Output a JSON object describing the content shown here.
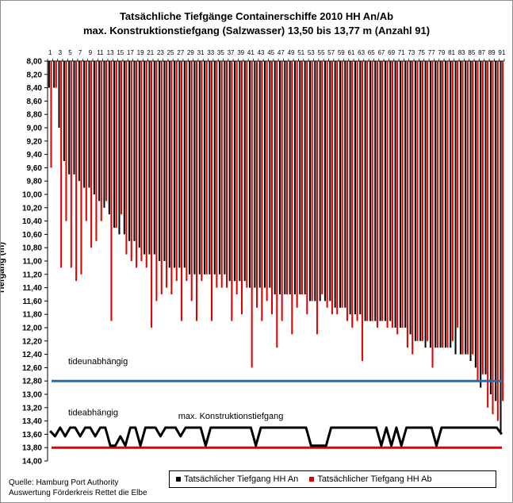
{
  "chart_data": {
    "type": "bar",
    "title": "Tatsächliche Tiefgänge Containerschiffe 2010 HH An/Ab",
    "subtitle": "max. Konstruktionstiefgang (Salzwasser) 13,50 bis 13,77 m (Anzahl 91)",
    "ylabel": "Tiefgang (m)",
    "xlabel": "",
    "ylim": [
      8.0,
      14.0
    ],
    "y_inverted": true,
    "y_tick_step": 0.2,
    "y_tick_labels": [
      "8,00",
      "8,20",
      "8,40",
      "8,60",
      "8,80",
      "9,00",
      "9,20",
      "9,40",
      "9,60",
      "9,80",
      "10,00",
      "10,20",
      "10,40",
      "10,60",
      "10,80",
      "11,00",
      "11,20",
      "11,40",
      "11,60",
      "11,80",
      "12,00",
      "12,20",
      "12,40",
      "12,60",
      "12,80",
      "13,00",
      "13,20",
      "13,40",
      "13,60",
      "13,80",
      "14,00"
    ],
    "categories": [
      "1",
      "2",
      "3",
      "4",
      "5",
      "6",
      "7",
      "8",
      "9",
      "10",
      "11",
      "12",
      "13",
      "14",
      "15",
      "16",
      "17",
      "18",
      "19",
      "20",
      "21",
      "22",
      "23",
      "24",
      "25",
      "26",
      "27",
      "28",
      "29",
      "30",
      "31",
      "32",
      "33",
      "34",
      "35",
      "36",
      "37",
      "38",
      "39",
      "40",
      "41",
      "42",
      "43",
      "44",
      "45",
      "46",
      "47",
      "48",
      "49",
      "50",
      "51",
      "52",
      "53",
      "54",
      "55",
      "56",
      "57",
      "58",
      "59",
      "60",
      "61",
      "62",
      "63",
      "64",
      "65",
      "66",
      "67",
      "68",
      "69",
      "70",
      "71",
      "72",
      "73",
      "74",
      "75",
      "76",
      "77",
      "78",
      "79",
      "80",
      "81",
      "82",
      "83",
      "84",
      "85",
      "86",
      "87",
      "88",
      "89",
      "90",
      "91"
    ],
    "x_tick_labels": [
      "1",
      "3",
      "5",
      "7",
      "9",
      "11",
      "13",
      "15",
      "17",
      "19",
      "21",
      "23",
      "25",
      "27",
      "29",
      "31",
      "33",
      "35",
      "37",
      "39",
      "41",
      "43",
      "45",
      "47",
      "49",
      "51",
      "53",
      "55",
      "57",
      "59",
      "61",
      "63",
      "65",
      "67",
      "69",
      "71",
      "73",
      "75",
      "77",
      "79",
      "81",
      "83",
      "85",
      "87",
      "89",
      "91"
    ],
    "series": [
      {
        "name": "Tatsächlicher Tiefgang HH An",
        "color": "#000000",
        "values": [
          8.4,
          8.4,
          9.0,
          9.5,
          9.7,
          9.7,
          9.8,
          9.9,
          9.9,
          10.0,
          10.1,
          10.2,
          10.3,
          10.5,
          10.6,
          10.6,
          10.7,
          10.7,
          10.8,
          10.9,
          10.9,
          10.9,
          11.0,
          11.0,
          11.1,
          11.1,
          11.1,
          11.1,
          11.2,
          11.2,
          11.2,
          11.2,
          11.2,
          11.2,
          11.2,
          11.2,
          11.3,
          11.3,
          11.3,
          11.3,
          11.4,
          11.4,
          11.4,
          11.4,
          11.4,
          11.5,
          11.5,
          11.5,
          11.5,
          11.5,
          11.5,
          11.5,
          11.6,
          11.6,
          11.6,
          11.6,
          11.6,
          11.7,
          11.7,
          11.7,
          11.8,
          11.8,
          11.8,
          11.9,
          11.9,
          11.9,
          11.9,
          11.9,
          11.9,
          12.0,
          12.0,
          12.0,
          12.1,
          12.2,
          12.2,
          12.3,
          12.3,
          12.3,
          12.3,
          12.3,
          12.3,
          12.4,
          12.4,
          12.4,
          12.5,
          12.6,
          12.9,
          12.7,
          13.0,
          13.1,
          13.6
        ]
      },
      {
        "name": "Tatsächlicher Tiefgang HH Ab",
        "color": "#e00000",
        "values": [
          9.6,
          8.4,
          11.1,
          10.4,
          11.1,
          11.3,
          11.2,
          10.4,
          10.8,
          10.7,
          10.4,
          10.1,
          11.9,
          10.5,
          10.3,
          10.9,
          11.0,
          11.1,
          11.0,
          11.1,
          12.0,
          11.6,
          11.5,
          11.4,
          11.5,
          11.3,
          11.9,
          11.3,
          11.6,
          11.9,
          11.3,
          11.2,
          11.9,
          11.4,
          11.4,
          11.4,
          11.9,
          11.5,
          11.8,
          11.4,
          12.6,
          11.7,
          11.9,
          11.6,
          11.8,
          12.3,
          11.9,
          11.5,
          12.1,
          11.7,
          11.5,
          11.8,
          11.6,
          12.1,
          11.5,
          11.7,
          11.8,
          11.8,
          11.7,
          11.9,
          12.0,
          11.9,
          12.5,
          11.9,
          11.9,
          12.0,
          11.9,
          12.0,
          12.0,
          12.1,
          12.0,
          12.3,
          12.4,
          12.2,
          12.2,
          12.2,
          12.6,
          12.3,
          12.3,
          12.3,
          12.2,
          12.0,
          12.4,
          12.4,
          12.4,
          12.8,
          12.7,
          13.2,
          13.3,
          13.4,
          13.1
        ]
      },
      {
        "name": "max. Konstruktionstiefgang",
        "type": "line",
        "color": "#000000",
        "values": [
          13.55,
          13.63,
          13.5,
          13.63,
          13.5,
          13.5,
          13.63,
          13.5,
          13.5,
          13.63,
          13.5,
          13.5,
          13.77,
          13.77,
          13.63,
          13.77,
          13.5,
          13.5,
          13.77,
          13.5,
          13.5,
          13.5,
          13.63,
          13.5,
          13.5,
          13.5,
          13.63,
          13.5,
          13.5,
          13.5,
          13.5,
          13.77,
          13.5,
          13.5,
          13.5,
          13.5,
          13.5,
          13.5,
          13.5,
          13.5,
          13.5,
          13.77,
          13.5,
          13.5,
          13.5,
          13.5,
          13.5,
          13.5,
          13.5,
          13.5,
          13.5,
          13.5,
          13.77,
          13.77,
          13.77,
          13.77,
          13.5,
          13.5,
          13.5,
          13.5,
          13.5,
          13.5,
          13.5,
          13.5,
          13.5,
          13.5,
          13.77,
          13.5,
          13.77,
          13.5,
          13.77,
          13.5,
          13.5,
          13.5,
          13.5,
          13.5,
          13.5,
          13.77,
          13.5,
          13.5,
          13.5,
          13.5,
          13.5,
          13.5,
          13.5,
          13.5,
          13.5,
          13.5,
          13.5,
          13.5,
          13.6
        ]
      }
    ],
    "reference_lines": [
      {
        "value": 12.8,
        "color": "#1f6fb5",
        "label": "tideunabhängig",
        "label_value": 12.5
      },
      {
        "value": 13.8,
        "color": "#e00000",
        "label": "tideabhängig",
        "label_value": 13.27
      }
    ],
    "annotation": {
      "text": "max. Konstruktionstiefgang",
      "category_index": 36,
      "value": 13.32
    },
    "grid": false,
    "legend_position": "bottom-right"
  },
  "footer": {
    "source_line1": "Quelle: Hamburg Port Authority",
    "source_line2": "Auswertung Förderkreis Rettet die Elbe"
  }
}
